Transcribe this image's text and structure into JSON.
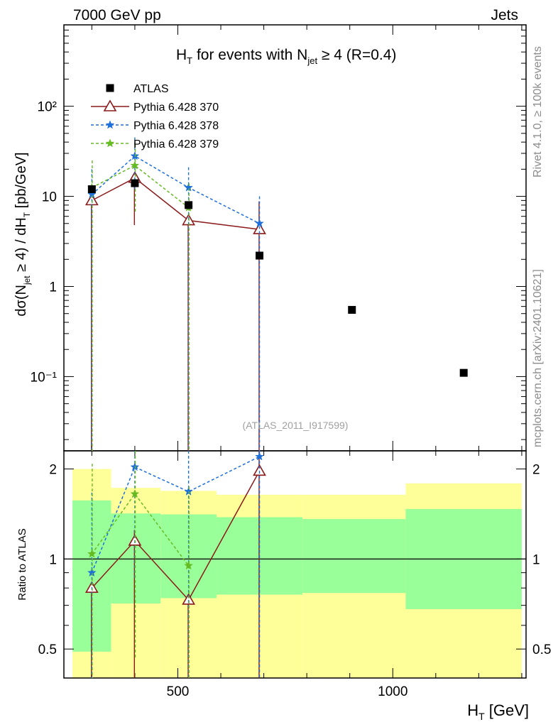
{
  "header": {
    "left": "7000 GeV pp",
    "right": "Jets"
  },
  "side_labels": {
    "rivet": "Rivet 4.1.0, ≥ 100k events",
    "source": "mcplots.cern.ch [arXiv:2401.10621]"
  },
  "title": {
    "prefix": "H",
    "sub": "T",
    "mid": " for events with N",
    "sub2": "jet",
    "suffix": " ≥ 4 (R=0.4)"
  },
  "watermark": "(ATLAS_2011_I917599)",
  "chart_data": {
    "type": "scatter",
    "title": "H_T for events with N_jet ≥ 4 (R=0.4)",
    "xlabel": "H_T [GeV]",
    "ylabel": "dσ(N_jet ≥ 4) / dH_T [pb/GeV]",
    "ratio_ylabel": "Ratio to ATLAS",
    "xlim": [
      235,
      1310
    ],
    "ylim": [
      0.015,
      800
    ],
    "yscale": "log",
    "ratio_ylim": [
      0.4,
      2.3
    ],
    "x_ticks": [
      "500",
      "1000"
    ],
    "y_ticks": [
      "10⁻¹",
      "1",
      "10",
      "10²"
    ],
    "ratio_ticks": [
      "0.5",
      "1",
      "2"
    ],
    "legend": [
      "ATLAS",
      "Pythia 6.428 370",
      "Pythia 6.428 378",
      "Pythia 6.428 379"
    ],
    "data": {
      "name": "ATLAS",
      "x": [
        300,
        400,
        525,
        690,
        905,
        1165
      ],
      "y": [
        12.0,
        14.0,
        8.0,
        2.2,
        0.55,
        0.11
      ],
      "xlow": [
        255,
        345,
        460,
        590,
        790,
        1030
      ],
      "xhigh": [
        345,
        460,
        590,
        790,
        1030,
        1300
      ],
      "band_inner_low": [
        0.49,
        0.71,
        0.74,
        0.76,
        0.77,
        0.68
      ],
      "band_inner_high": [
        1.57,
        1.42,
        1.41,
        1.38,
        1.36,
        1.47
      ],
      "band_outer_low": [
        0.35,
        0.35,
        0.35,
        0.38,
        0.39,
        0.35
      ],
      "band_outer_high": [
        2.0,
        1.73,
        1.69,
        1.64,
        1.64,
        1.79
      ]
    },
    "series": [
      {
        "name": "Pythia 6.428 370",
        "color": "#8b1a1a",
        "style": "solid",
        "marker": "triangle",
        "x": [
          300,
          400,
          525,
          690
        ],
        "y": [
          9.0,
          16.0,
          5.4,
          4.3
        ],
        "err_low": [
          0.001,
          4.8,
          0.001,
          0.001
        ],
        "err_high": [
          9.5,
          17.5,
          6.0,
          8.8
        ],
        "ratio": [
          0.8,
          1.15,
          0.73,
          1.97
        ]
      },
      {
        "name": "Pythia 6.428 378",
        "color": "#1e6fd9",
        "style": "dashed",
        "marker": "star",
        "x": [
          300,
          400,
          525,
          690
        ],
        "y": [
          10.5,
          28.0,
          12.5,
          5.0
        ],
        "err_low": [
          0.001,
          12.0,
          0.001,
          0.001
        ],
        "err_high": [
          20.0,
          45.0,
          21.0,
          10.0
        ],
        "ratio": [
          0.9,
          2.03,
          1.68,
          2.2
        ]
      },
      {
        "name": "Pythia 6.428 379",
        "color": "#66bb22",
        "style": "dashed",
        "marker": "star",
        "x": [
          300,
          400,
          525
        ],
        "y": [
          12.5,
          22.0,
          7.5
        ],
        "err_low": [
          0.001,
          6.5,
          0.001
        ],
        "err_high": [
          25.0,
          38.0,
          14.0
        ],
        "ratio": [
          1.04,
          1.65,
          0.95
        ]
      }
    ]
  }
}
